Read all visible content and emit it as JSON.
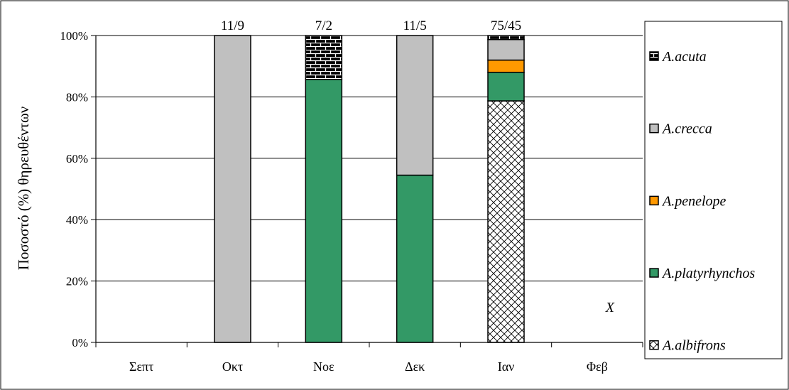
{
  "chart_data": {
    "type": "bar",
    "stacked": true,
    "categories": [
      "Σεπτ",
      "Οκτ",
      "Νοε",
      "Δεκ",
      "Ιαν",
      "Φεβ"
    ],
    "top_labels": [
      "",
      "11/9",
      "7/2",
      "11/5",
      "75/45",
      ""
    ],
    "series": [
      {
        "name": "A.albifrons",
        "color": "#ffffff",
        "pattern": "diamond-hatch",
        "values": [
          0,
          0,
          0,
          0,
          78.7,
          0
        ]
      },
      {
        "name": "A.platyrhynchos",
        "color": "#339966",
        "pattern": "solid",
        "values": [
          0,
          0,
          85.7,
          54.5,
          9.3,
          0
        ]
      },
      {
        "name": "A.penelope",
        "color": "#ff9900",
        "pattern": "solid",
        "values": [
          0,
          0,
          0,
          0,
          4.0,
          0
        ]
      },
      {
        "name": "A.crecca",
        "color": "#c0c0c0",
        "pattern": "solid",
        "values": [
          0,
          100,
          0,
          45.5,
          6.7,
          0
        ]
      },
      {
        "name": "A.acuta",
        "color": "#000000",
        "pattern": "brick",
        "values": [
          0,
          0,
          14.3,
          0,
          1.3,
          0
        ]
      }
    ],
    "legend_order": [
      "A.acuta",
      "A.crecca",
      "A.penelope",
      "A.platyrhynchos",
      "A.albifrons"
    ],
    "ylabel": "Ποσοστό (%) θηρευθέντων",
    "xlabel": "",
    "y_ticks": [
      "0%",
      "20%",
      "40%",
      "60%",
      "80%",
      "100%"
    ],
    "ylim": [
      0,
      100
    ],
    "grid": true,
    "legend_position": "right",
    "annotations": [
      {
        "text": "X",
        "category": "Φεβ",
        "y": 10
      }
    ]
  }
}
